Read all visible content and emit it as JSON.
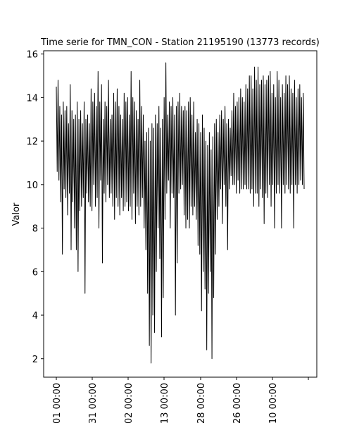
{
  "chart_data": {
    "type": "line",
    "title": "Time serie for TMN_CON - Station 21195190 (13773 records)",
    "xlabel": "",
    "ylabel": "Valor",
    "ylim": [
      1.15,
      16.15
    ],
    "yticks": [
      2,
      4,
      6,
      8,
      10,
      12,
      14,
      16
    ],
    "xticks": [
      "01 00:00",
      "31 00:00",
      "02 00:00",
      "13 00:00",
      "28 00:00",
      "26 00:00",
      "10 00:00",
      ""
    ],
    "grid": false,
    "legend": "none",
    "line_color": "#000000",
    "series": [
      {
        "values": [
          14.5,
          10.6,
          14.8,
          10.2,
          13.6,
          9.2,
          13.2,
          6.8,
          13.8,
          9.8,
          13.4,
          9.4,
          13.6,
          8.6,
          12.8,
          9.6,
          14.6,
          7.0,
          13.4,
          9.2,
          13.0,
          8.0,
          13.2,
          7.0,
          13.8,
          6.0,
          13.0,
          8.8,
          13.4,
          9.0,
          12.8,
          9.4,
          13.8,
          5.0,
          13.0,
          9.6,
          13.2,
          9.2,
          12.8,
          9.0,
          14.4,
          8.8,
          13.8,
          10.0,
          14.2,
          9.0,
          13.6,
          9.4,
          15.2,
          8.0,
          13.8,
          10.2,
          14.6,
          6.4,
          13.0,
          9.6,
          13.8,
          9.2,
          13.6,
          10.0,
          14.8,
          9.4,
          13.0,
          9.6,
          13.2,
          9.0,
          14.2,
          8.4,
          13.8,
          9.4,
          14.4,
          9.0,
          13.6,
          8.6,
          13.2,
          9.4,
          13.0,
          8.8,
          14.2,
          9.0,
          13.8,
          9.2,
          14.0,
          8.8,
          13.2,
          9.0,
          15.2,
          8.4,
          14.0,
          9.6,
          13.8,
          8.2,
          13.4,
          9.0,
          13.0,
          8.6,
          14.8,
          9.0,
          13.6,
          9.4,
          13.2,
          8.0,
          12.0,
          7.0,
          12.4,
          5.0,
          12.6,
          2.6,
          12.0,
          1.8,
          12.8,
          4.0,
          12.6,
          3.2,
          13.2,
          6.0,
          12.8,
          8.0,
          13.6,
          6.6,
          12.6,
          3.0,
          13.0,
          4.8,
          14.0,
          8.4,
          15.6,
          9.6,
          13.2,
          10.2,
          13.8,
          8.0,
          13.6,
          9.6,
          14.0,
          9.4,
          13.2,
          4.0,
          13.6,
          6.4,
          13.8,
          9.6,
          14.2,
          9.8,
          13.6,
          10.0,
          13.4,
          8.6,
          13.6,
          8.0,
          13.4,
          8.4,
          13.8,
          8.0,
          14.0,
          9.0,
          13.2,
          8.6,
          13.8,
          9.0,
          12.4,
          8.4,
          13.0,
          7.2,
          12.8,
          6.8,
          12.4,
          4.2,
          13.2,
          6.0,
          12.6,
          5.2,
          12.0,
          2.4,
          11.8,
          5.0,
          12.4,
          6.0,
          11.6,
          2.0,
          12.2,
          4.8,
          12.8,
          6.8,
          13.0,
          8.4,
          12.4,
          9.0,
          13.2,
          9.8,
          13.4,
          8.2,
          13.0,
          10.0,
          13.6,
          9.0,
          12.8,
          7.0,
          13.0,
          9.8,
          12.6,
          10.4,
          13.4,
          10.0,
          14.2,
          10.0,
          13.6,
          9.6,
          13.8,
          10.2,
          14.0,
          9.6,
          14.4,
          9.8,
          14.0,
          9.8,
          13.8,
          10.0,
          14.6,
          9.8,
          14.4,
          9.8,
          15.0,
          9.6,
          15.0,
          9.8,
          14.4,
          9.0,
          15.4,
          9.6,
          14.8,
          9.6,
          15.4,
          9.0,
          14.6,
          9.8,
          14.8,
          9.4,
          15.0,
          8.2,
          14.6,
          9.6,
          14.8,
          9.4,
          15.0,
          10.0,
          15.2,
          9.0,
          14.2,
          10.0,
          14.6,
          8.0,
          14.0,
          9.6,
          15.2,
          10.0,
          14.8,
          9.6,
          14.0,
          8.0,
          14.6,
          10.0,
          14.2,
          9.6,
          15.0,
          10.0,
          14.6,
          9.8,
          15.0,
          9.6,
          14.4,
          10.0,
          14.2,
          8.0,
          14.8,
          10.0,
          14.0,
          9.6,
          14.4,
          10.0,
          14.6,
          10.2,
          14.0,
          10.0,
          14.2,
          9.8
        ]
      }
    ]
  }
}
